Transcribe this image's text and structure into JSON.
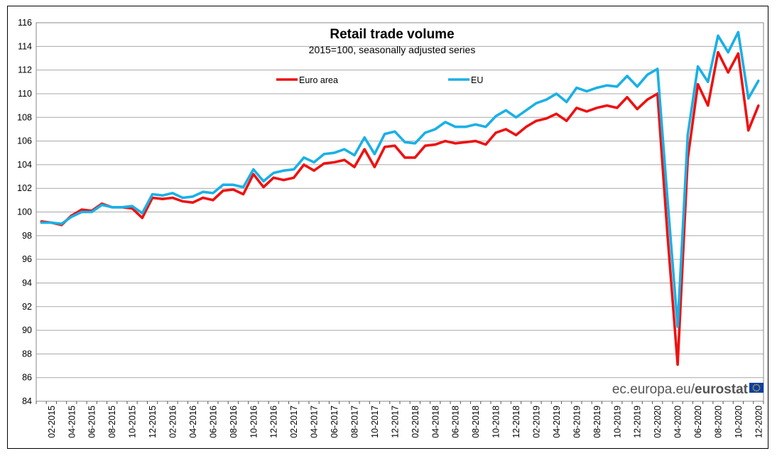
{
  "chart_data": {
    "type": "line",
    "title": "Retail trade volume",
    "subtitle": "2015=100,  seasonally adjusted series",
    "xlabel": "",
    "ylabel": "",
    "ylim": [
      84,
      116
    ],
    "y_ticks": [
      84,
      86,
      88,
      90,
      92,
      94,
      96,
      98,
      100,
      102,
      104,
      106,
      108,
      110,
      112,
      114,
      116
    ],
    "grid": "horizontal",
    "legend_position": "top-center",
    "x": [
      "01-2015",
      "02-2015",
      "03-2015",
      "04-2015",
      "05-2015",
      "06-2015",
      "07-2015",
      "08-2015",
      "09-2015",
      "10-2015",
      "11-2015",
      "12-2015",
      "01-2016",
      "02-2016",
      "03-2016",
      "04-2016",
      "05-2016",
      "06-2016",
      "07-2016",
      "08-2016",
      "09-2016",
      "10-2016",
      "11-2016",
      "12-2016",
      "01-2017",
      "02-2017",
      "03-2017",
      "04-2017",
      "05-2017",
      "06-2017",
      "07-2017",
      "08-2017",
      "09-2017",
      "10-2017",
      "11-2017",
      "12-2017",
      "01-2018",
      "02-2018",
      "03-2018",
      "04-2018",
      "05-2018",
      "06-2018",
      "07-2018",
      "08-2018",
      "09-2018",
      "10-2018",
      "11-2018",
      "12-2018",
      "01-2019",
      "02-2019",
      "03-2019",
      "04-2019",
      "05-2019",
      "06-2019",
      "07-2019",
      "08-2019",
      "09-2019",
      "10-2019",
      "11-2019",
      "12-2019",
      "01-2020",
      "02-2020",
      "03-2020",
      "04-2020",
      "05-2020",
      "06-2020",
      "07-2020",
      "08-2020",
      "09-2020",
      "10-2020",
      "11-2020",
      "12-2020"
    ],
    "x_tick_labels": [
      "02-2015",
      "04-2015",
      "06-2015",
      "08-2015",
      "10-2015",
      "12-2015",
      "02-2016",
      "04-2016",
      "06-2016",
      "08-2016",
      "10-2016",
      "12-2016",
      "02-2017",
      "04-2017",
      "06-2017",
      "08-2017",
      "10-2017",
      "12-2017",
      "02-2018",
      "04-2018",
      "06-2018",
      "08-2018",
      "10-2018",
      "12-2018",
      "02-2019",
      "04-2019",
      "06-2019",
      "08-2019",
      "10-2019",
      "12-2019",
      "02-2020",
      "04-2020",
      "06-2020",
      "08-2020",
      "10-2020",
      "12-2020"
    ],
    "series": [
      {
        "name": "Euro area",
        "color": "#ee1111",
        "values": [
          99.2,
          99.1,
          98.9,
          99.7,
          100.2,
          100.1,
          100.7,
          100.4,
          100.4,
          100.3,
          99.5,
          101.2,
          101.1,
          101.2,
          100.9,
          100.8,
          101.2,
          101.0,
          101.8,
          101.9,
          101.5,
          103.2,
          102.1,
          102.9,
          102.7,
          102.9,
          104.0,
          103.5,
          104.1,
          104.2,
          104.4,
          103.8,
          105.3,
          103.8,
          105.5,
          105.6,
          104.6,
          104.6,
          105.6,
          105.7,
          106.0,
          105.8,
          105.9,
          106.0,
          105.7,
          106.7,
          107.0,
          106.5,
          107.2,
          107.7,
          107.9,
          108.3,
          107.7,
          108.8,
          108.5,
          108.8,
          109.0,
          108.8,
          109.7,
          108.7,
          109.5,
          110.0,
          98.0,
          87.1,
          104.5,
          110.8,
          109.0,
          113.5,
          111.8,
          113.4,
          106.9,
          109.0
        ]
      },
      {
        "name": "EU",
        "color": "#1ab0e6",
        "values": [
          99.1,
          99.1,
          99.0,
          99.6,
          100.0,
          100.0,
          100.6,
          100.4,
          100.4,
          100.5,
          99.9,
          101.5,
          101.4,
          101.6,
          101.2,
          101.3,
          101.7,
          101.6,
          102.3,
          102.3,
          102.1,
          103.6,
          102.6,
          103.3,
          103.5,
          103.6,
          104.6,
          104.2,
          104.9,
          105.0,
          105.3,
          104.8,
          106.3,
          104.9,
          106.6,
          106.8,
          105.9,
          105.8,
          106.7,
          107.0,
          107.6,
          107.2,
          107.2,
          107.4,
          107.2,
          108.1,
          108.6,
          108.0,
          108.6,
          109.2,
          109.5,
          110.0,
          109.3,
          110.5,
          110.2,
          110.5,
          110.7,
          110.6,
          111.5,
          110.6,
          111.6,
          112.1,
          101.0,
          90.3,
          106.5,
          112.3,
          111.0,
          114.9,
          113.5,
          115.2,
          109.6,
          111.1
        ]
      }
    ]
  },
  "branding": {
    "prefix": "ec.europa.eu/",
    "name": "eurostat",
    "flag_color": "#0d3fa6",
    "star_color": "#ffd400"
  }
}
